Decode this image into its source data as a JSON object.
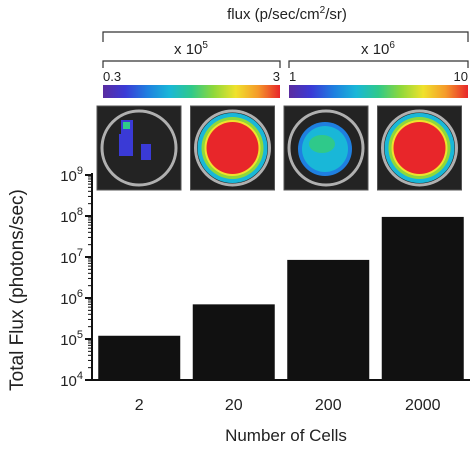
{
  "header": {
    "title": "flux (p/sec/cm",
    "title_sup": "2",
    "title_tail": "/sr)"
  },
  "scales": [
    {
      "multiplier": "x 10",
      "exponent": "5",
      "min_label": "0.3",
      "max_label": "3"
    },
    {
      "multiplier": "x 10",
      "exponent": "6",
      "min_label": "1",
      "max_label": "10"
    }
  ],
  "colors": {
    "bar": "#111111",
    "axis": "#111111",
    "ring": "#b0b0b0",
    "well_bg": "#232323",
    "colorbar": [
      "#5a2ca0",
      "#3a3ad6",
      "#1f7fe0",
      "#19b7d8",
      "#2fc98a",
      "#8fd83a",
      "#f0e22c",
      "#f59a2a",
      "#e8262a"
    ]
  },
  "wells": [
    {
      "cells": "2",
      "signal": "sparse-low"
    },
    {
      "cells": "20",
      "signal": "saturated"
    },
    {
      "cells": "200",
      "signal": "medium"
    },
    {
      "cells": "2000",
      "signal": "saturated"
    }
  ],
  "chart_data": {
    "type": "bar",
    "categories": [
      "2",
      "20",
      "200",
      "2000"
    ],
    "values": [
      120000,
      700000,
      8500000,
      95000000
    ],
    "ylabel": "Total Flux (photons/sec)",
    "xlabel": "Number of Cells",
    "yscale": "log",
    "ylim": [
      10000,
      1000000000
    ],
    "yticks": [
      {
        "base": "10",
        "exp": "4",
        "value": 10000
      },
      {
        "base": "10",
        "exp": "5",
        "value": 100000
      },
      {
        "base": "10",
        "exp": "6",
        "value": 1000000
      },
      {
        "base": "10",
        "exp": "7",
        "value": 10000000
      },
      {
        "base": "10",
        "exp": "8",
        "value": 100000000
      },
      {
        "base": "10",
        "exp": "9",
        "value": 1000000000
      }
    ],
    "grid": false
  }
}
